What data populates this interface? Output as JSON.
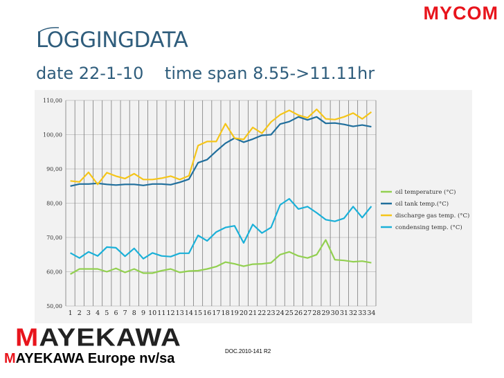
{
  "brand": {
    "top_logo": "MYCOM",
    "bottom_logo_first": "M",
    "bottom_logo_rest": "AYEKAWA",
    "company_first": "M",
    "company_rest": "AYEKAWA Europe nv/sa",
    "doc_ref": "DOC.2010-141 R2"
  },
  "slide": {
    "title": "LOGGINGDATA",
    "subtitle": "date 22-1-10    time span 8.55->11.11hr"
  },
  "colors": {
    "oil_temperature": "#92d050",
    "oil_tank_temp": "#1f6e9c",
    "discharge_gas_temp": "#f5c518",
    "condensing_temp": "#1ab0d8",
    "title": "#2f5d7c",
    "brand_red": "#e8141c"
  },
  "chart_data": {
    "type": "line",
    "x": [
      1,
      2,
      3,
      4,
      5,
      6,
      7,
      8,
      9,
      10,
      11,
      12,
      13,
      14,
      15,
      16,
      17,
      18,
      19,
      20,
      21,
      22,
      23,
      24,
      25,
      26,
      27,
      28,
      29,
      30,
      31,
      32,
      33,
      34
    ],
    "ylim": [
      50,
      110
    ],
    "yticks": [
      "50,00",
      "60,00",
      "70,00",
      "80,00",
      "90,00",
      "100,00",
      "110,00"
    ],
    "ytick_values": [
      50,
      60,
      70,
      80,
      90,
      100,
      110
    ],
    "grid": true,
    "legend_position": "right",
    "series": [
      {
        "name": "oil temperature (°C)",
        "color": "#92d050",
        "values": [
          59.3,
          60.8,
          60.8,
          60.8,
          60,
          61,
          59.8,
          60.8,
          59.6,
          59.6,
          60.3,
          60.8,
          59.8,
          60.2,
          60.3,
          60.8,
          61.5,
          62.8,
          62.3,
          61.6,
          62.2,
          62.3,
          62.6,
          65,
          65.8,
          64.6,
          64,
          65,
          69.3,
          63.5,
          63.3,
          62.9,
          63.1,
          62.6
        ]
      },
      {
        "name": "oil tank temp.(°C)",
        "color": "#1f6e9c",
        "values": [
          85,
          85.6,
          85.6,
          85.8,
          85.5,
          85.3,
          85.5,
          85.5,
          85.2,
          85.6,
          85.6,
          85.4,
          86.1,
          87,
          91.8,
          92.7,
          95.2,
          97.5,
          99,
          97.8,
          98.7,
          99.8,
          100,
          103.1,
          103.8,
          105.2,
          104.3,
          105.2,
          103.3,
          103.4,
          103,
          102.4,
          102.8,
          102.3
        ]
      },
      {
        "name": "discharge gas temp. (°C)",
        "color": "#f5c518",
        "values": [
          86.5,
          86.2,
          89,
          85.5,
          88.9,
          87.9,
          87.2,
          88.6,
          86.9,
          86.9,
          87.3,
          87.9,
          86.9,
          88,
          96.8,
          98,
          98,
          103.2,
          99,
          98.6,
          102.1,
          100.4,
          103.7,
          105.8,
          107.1,
          105.7,
          104.9,
          107.4,
          104.6,
          104.4,
          105.2,
          106.3,
          104.6,
          106.6
        ]
      },
      {
        "name": "condensing temp. (°C)",
        "color": "#1ab0d8",
        "values": [
          65.5,
          64,
          65.8,
          64.6,
          67.2,
          67,
          64.5,
          66.8,
          63.8,
          65.5,
          64.6,
          64.4,
          65.4,
          65.4,
          70.6,
          69,
          71.6,
          72.9,
          73.4,
          68.4,
          73.8,
          71.3,
          72.9,
          79.5,
          81.3,
          78.3,
          79,
          77.2,
          75.2,
          74.7,
          75.6,
          79,
          75.8,
          79.1
        ]
      }
    ]
  }
}
